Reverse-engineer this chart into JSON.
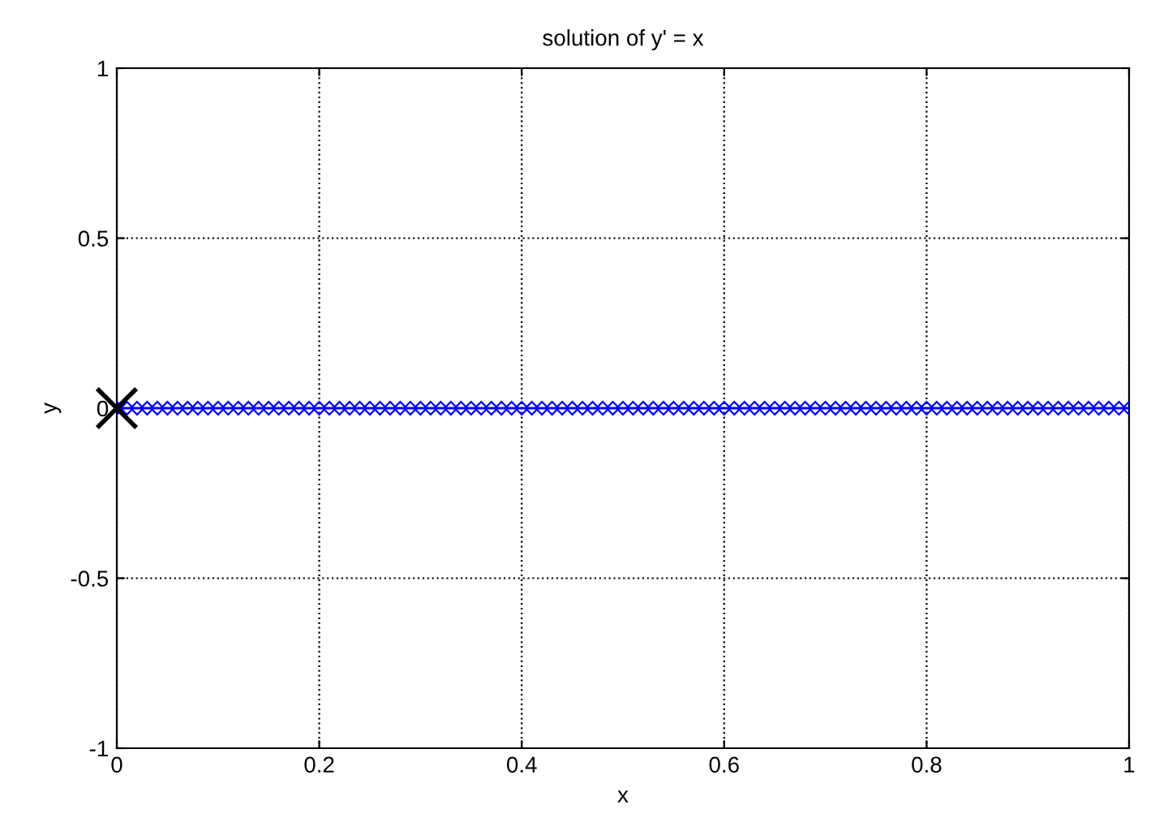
{
  "chart_data": {
    "type": "line",
    "title": "solution of y' = x",
    "xlabel": "x",
    "ylabel": "y",
    "series": [
      {
        "color": "#0000ff",
        "marker": "diamond",
        "x": [
          0,
          0.01,
          0.02,
          0.03,
          0.04,
          0.05,
          0.06,
          0.07,
          0.08,
          0.09,
          0.1,
          0.11,
          0.12,
          0.13,
          0.14,
          0.15,
          0.16,
          0.17,
          0.18,
          0.19,
          0.2,
          0.21,
          0.22,
          0.23,
          0.24,
          0.25,
          0.26,
          0.27,
          0.28,
          0.29,
          0.3,
          0.31,
          0.32,
          0.33,
          0.34,
          0.35,
          0.36,
          0.37,
          0.38,
          0.39,
          0.4,
          0.41,
          0.42,
          0.43,
          0.44,
          0.45,
          0.46,
          0.47,
          0.48,
          0.49,
          0.5,
          0.51,
          0.52,
          0.53,
          0.54,
          0.55,
          0.56,
          0.57,
          0.58,
          0.59,
          0.6,
          0.61,
          0.62,
          0.63,
          0.64,
          0.65,
          0.66,
          0.67,
          0.68,
          0.69,
          0.7,
          0.71,
          0.72,
          0.73,
          0.74,
          0.75,
          0.76,
          0.77,
          0.78,
          0.79,
          0.8,
          0.81,
          0.82,
          0.83,
          0.84,
          0.85,
          0.86,
          0.87,
          0.88,
          0.89,
          0.9,
          0.91,
          0.92,
          0.93,
          0.94,
          0.95,
          0.96,
          0.97,
          0.98,
          0.99,
          1
        ],
        "values": [
          0,
          0,
          0,
          0,
          0,
          0,
          0,
          0,
          0,
          0,
          0,
          0,
          0,
          0,
          0,
          0,
          0,
          0,
          0,
          0,
          0,
          0,
          0,
          0,
          0,
          0,
          0,
          0,
          0,
          0,
          0,
          0,
          0,
          0,
          0,
          0,
          0,
          0,
          0,
          0,
          0,
          0,
          0,
          0,
          0,
          0,
          0,
          0,
          0,
          0,
          0,
          0,
          0,
          0,
          0,
          0,
          0,
          0,
          0,
          0,
          0,
          0,
          0,
          0,
          0,
          0,
          0,
          0,
          0,
          0,
          0,
          0,
          0,
          0,
          0,
          0,
          0,
          0,
          0,
          0,
          0,
          0,
          0,
          0,
          0,
          0,
          0,
          0,
          0,
          0,
          0,
          0,
          0,
          0,
          0,
          0,
          0,
          0,
          0,
          0,
          0
        ]
      },
      {
        "type": "scatter",
        "color": "#000000",
        "marker": "cross",
        "x": [
          0
        ],
        "values": [
          0
        ]
      }
    ],
    "xlim": [
      0,
      1
    ],
    "ylim": [
      -1,
      1
    ],
    "xticks": [
      0,
      0.2,
      0.4,
      0.6,
      0.8,
      1
    ],
    "yticks": [
      -1,
      -0.5,
      0,
      0.5,
      1
    ],
    "grid": true,
    "legend": false
  }
}
